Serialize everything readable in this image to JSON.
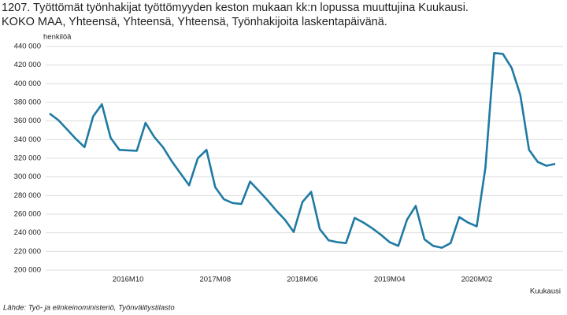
{
  "chart_data": {
    "type": "line",
    "title": "1207. Työttömät työnhakijat työttömyyden keston mukaan kk:n lopussa muuttujina Kuukausi.",
    "subtitle": "KOKO MAA, Yhteensä, Yhteensä, Yhteensä, Työnhakijoita laskentapäivänä.",
    "y_label": "henkilöä",
    "x_label": "Kuukausi",
    "source": "Lähde: Työ- ja elinkeinoministeriö, Työnvälitystilasto",
    "categories": [
      null,
      null,
      null,
      null,
      null,
      null,
      null,
      null,
      null,
      "2016M10",
      null,
      null,
      null,
      null,
      null,
      null,
      null,
      null,
      null,
      "2017M08",
      null,
      null,
      null,
      null,
      null,
      null,
      null,
      null,
      null,
      "2018M06",
      null,
      null,
      null,
      null,
      null,
      null,
      null,
      null,
      null,
      "2019M04",
      null,
      null,
      null,
      null,
      null,
      null,
      null,
      null,
      null,
      "2020M02",
      null,
      null,
      null,
      null,
      null,
      null,
      null,
      null,
      null
    ],
    "series": [
      {
        "name": "Työnhakijoita laskentapäivänä",
        "color": "#1f7aa3",
        "values": [
          368000,
          361000,
          351000,
          341000,
          332000,
          365000,
          378000,
          342000,
          329000,
          328500,
          328000,
          358000,
          343000,
          332000,
          317000,
          304000,
          291000,
          320000,
          329000,
          289000,
          276000,
          272000,
          271000,
          295000,
          285000,
          275000,
          264000,
          254000,
          241000,
          273000,
          284000,
          244000,
          232000,
          230000,
          229000,
          256000,
          251000,
          245000,
          238000,
          230000,
          226000,
          254000,
          269000,
          233000,
          226000,
          224000,
          229000,
          257000,
          251000,
          247000,
          310000,
          433000,
          432000,
          417000,
          388000,
          329000,
          316000,
          312000,
          314000
        ]
      }
    ],
    "ylim": [
      200000,
      440000
    ],
    "yticks": [
      {
        "value": 200000,
        "label": "200 000"
      },
      {
        "value": 220000,
        "label": "220 000"
      },
      {
        "value": 240000,
        "label": "240 000"
      },
      {
        "value": 260000,
        "label": "260 000"
      },
      {
        "value": 280000,
        "label": "280 000"
      },
      {
        "value": 300000,
        "label": "300 000"
      },
      {
        "value": 320000,
        "label": "320 000"
      },
      {
        "value": 340000,
        "label": "340 000"
      },
      {
        "value": 360000,
        "label": "360 000"
      },
      {
        "value": 380000,
        "label": "380 000"
      },
      {
        "value": 400000,
        "label": "400 000"
      },
      {
        "value": 420000,
        "label": "420 000"
      },
      {
        "value": 440000,
        "label": "440 000"
      }
    ],
    "grid": true
  }
}
